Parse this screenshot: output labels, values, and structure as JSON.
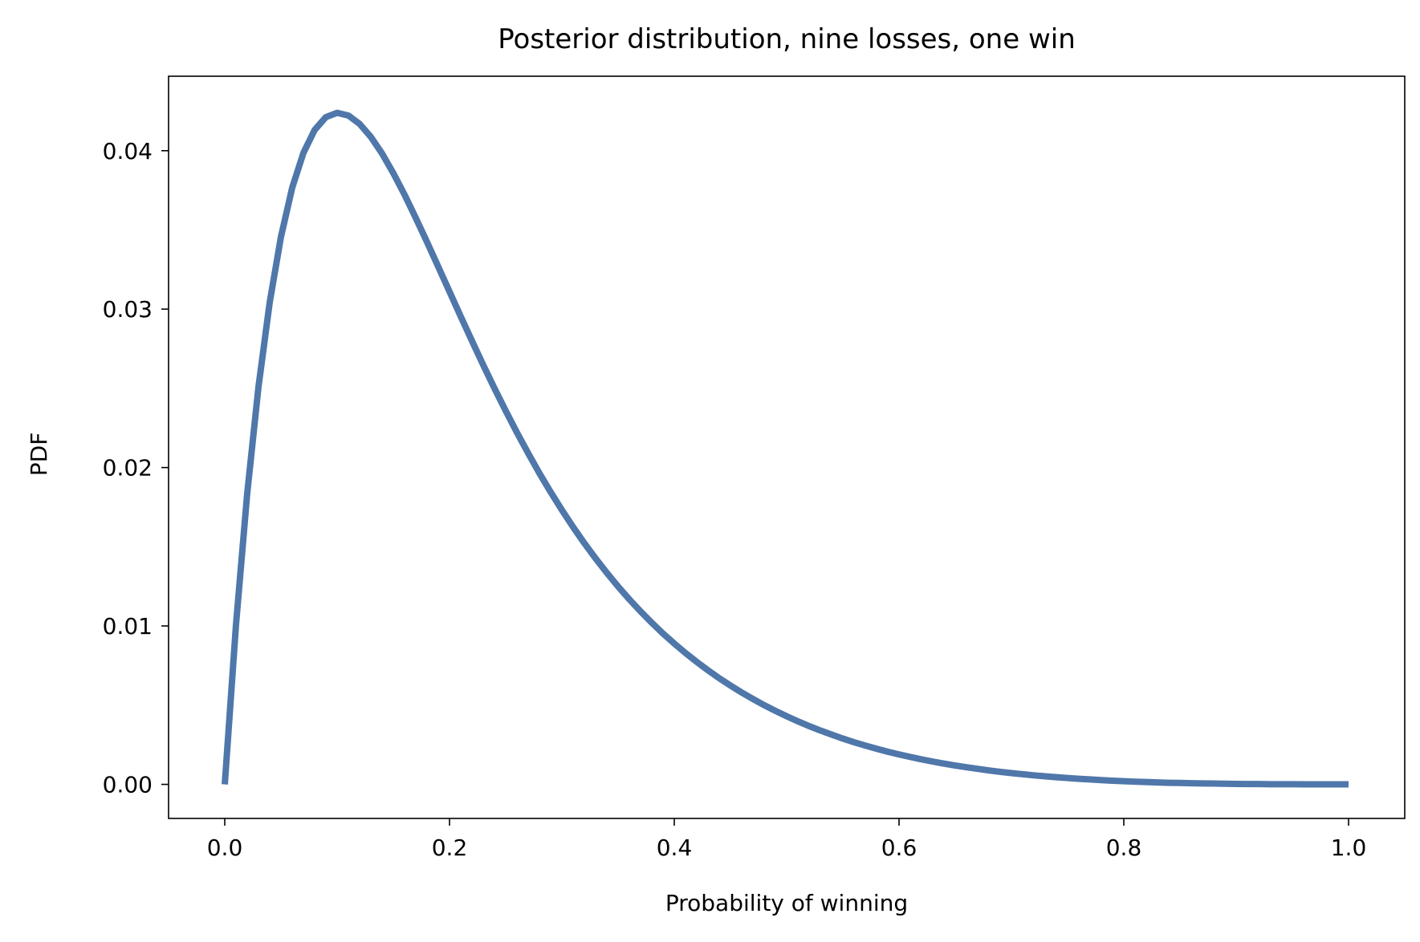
{
  "chart_data": {
    "type": "line",
    "title": "Posterior distribution, nine losses, one win",
    "xlabel": "Probability of winning",
    "ylabel": "PDF",
    "xlim": [
      -0.05,
      1.05
    ],
    "ylim": [
      -0.00215,
      0.0447
    ],
    "xticks": [
      0.0,
      0.2,
      0.4,
      0.6,
      0.8,
      1.0
    ],
    "xtick_labels": [
      "0.0",
      "0.2",
      "0.4",
      "0.6",
      "0.8",
      "1.0"
    ],
    "yticks": [
      0.0,
      0.01,
      0.02,
      0.03,
      0.04
    ],
    "ytick_labels": [
      "0.00",
      "0.01",
      "0.02",
      "0.03",
      "0.04"
    ],
    "grid": false,
    "legend": "none",
    "series": [
      {
        "color": "#4f77aa",
        "x": [
          0.0,
          0.01,
          0.02,
          0.03,
          0.04,
          0.05,
          0.06,
          0.07,
          0.08,
          0.09,
          0.1,
          0.11,
          0.12,
          0.13,
          0.14,
          0.15,
          0.16,
          0.17,
          0.18,
          0.19,
          0.2,
          0.21,
          0.22,
          0.23,
          0.24,
          0.25,
          0.26,
          0.27,
          0.28,
          0.29,
          0.3,
          0.31,
          0.32,
          0.33,
          0.34,
          0.35,
          0.36,
          0.37,
          0.38,
          0.39,
          0.4,
          0.41,
          0.42,
          0.43,
          0.44,
          0.45,
          0.46,
          0.47,
          0.48,
          0.49,
          0.5,
          0.51,
          0.52,
          0.53,
          0.54,
          0.55,
          0.56,
          0.57,
          0.58,
          0.59,
          0.6,
          0.61,
          0.62,
          0.63,
          0.64,
          0.65,
          0.66,
          0.67,
          0.68,
          0.69,
          0.7,
          0.71,
          0.72,
          0.73,
          0.74,
          0.75,
          0.76,
          0.77,
          0.78,
          0.79,
          0.8,
          0.81,
          0.82,
          0.83,
          0.84,
          0.85,
          0.86,
          0.87,
          0.88,
          0.89,
          0.9,
          0.91,
          0.92,
          0.93,
          0.94,
          0.95,
          0.96,
          0.97,
          0.98,
          0.99,
          1.0
        ],
        "values": [
          0.0,
          0.01008,
          0.01838,
          0.02509,
          0.03043,
          0.03456,
          0.03766,
          0.03986,
          0.04131,
          0.04212,
          0.04239,
          0.04222,
          0.04169,
          0.04087,
          0.03982,
          0.03858,
          0.03722,
          0.03575,
          0.03423,
          0.03267,
          0.0311,
          0.02953,
          0.02799,
          0.02647,
          0.025,
          0.02358,
          0.02221,
          0.0209,
          0.01964,
          0.01845,
          0.01732,
          0.01624,
          0.01522,
          0.01426,
          0.01335,
          0.01249,
          0.01168,
          0.01092,
          0.0102,
          0.00952,
          0.00889,
          0.00829,
          0.00773,
          0.0072,
          0.0067,
          0.00624,
          0.0058,
          0.00539,
          0.005,
          0.00464,
          0.0043,
          0.00398,
          0.00368,
          0.0034,
          0.00314,
          0.00289,
          0.00266,
          0.00245,
          0.00225,
          0.00206,
          0.00189,
          0.00173,
          0.00158,
          0.00144,
          0.00131,
          0.00119,
          0.00108,
          0.00098,
          0.00088,
          0.00079,
          0.00071,
          0.00064,
          0.00057,
          0.00051,
          0.00045,
          0.0004,
          0.00035,
          0.00031,
          0.00027,
          0.00023,
          0.0002,
          0.00017,
          0.00015,
          0.00012,
          0.0001,
          9e-05,
          7e-05,
          6e-05,
          5e-05,
          4e-05,
          3e-05,
          2e-05,
          2e-05,
          1e-05,
          1e-05,
          1e-05,
          0.0,
          0.0,
          0.0,
          0.0,
          0.0
        ]
      }
    ]
  }
}
